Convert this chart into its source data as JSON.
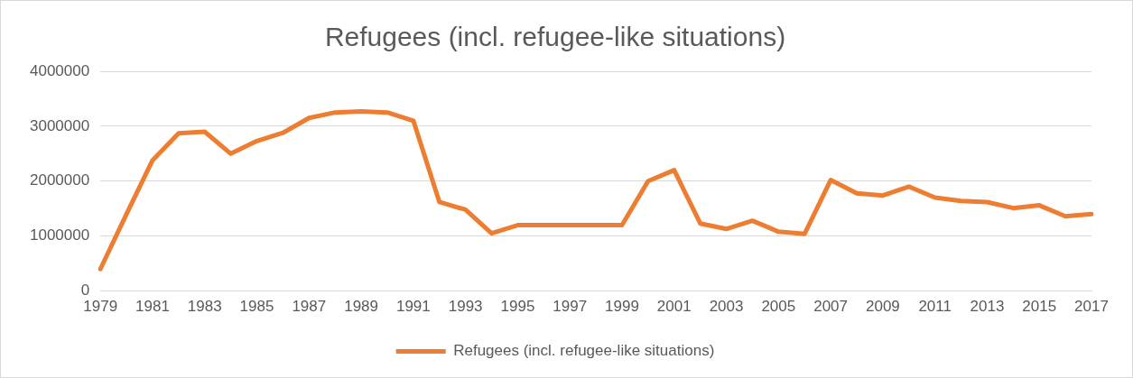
{
  "chart_data": {
    "type": "line",
    "title": "Refugees (incl. refugee-like situations)",
    "categories": [
      "1979",
      null,
      "1981",
      null,
      "1983",
      null,
      "1985",
      null,
      "1987",
      null,
      "1989",
      null,
      "1991",
      null,
      "1993",
      null,
      "1995",
      null,
      "1997",
      null,
      "1999",
      null,
      "2001",
      null,
      "2003",
      null,
      "2005",
      null,
      "2007",
      null,
      "2009",
      null,
      "2011",
      null,
      "2013",
      null,
      "2015",
      null,
      "2017"
    ],
    "series": [
      {
        "name": "Refugees (incl. refugee-like situations)",
        "color": "#ed7d31",
        "values": [
          400000,
          1400000,
          2380000,
          2870000,
          2900000,
          2500000,
          2730000,
          2880000,
          3150000,
          3250000,
          3270000,
          3250000,
          3100000,
          1620000,
          1480000,
          1050000,
          1200000,
          1200000,
          1200000,
          1200000,
          1200000,
          2000000,
          2200000,
          1230000,
          1130000,
          1280000,
          1080000,
          1040000,
          2020000,
          1780000,
          1740000,
          1900000,
          1700000,
          1640000,
          1620000,
          1510000,
          1560000,
          1360000,
          1400000
        ]
      }
    ],
    "ylim": [
      0,
      4000000
    ],
    "yticks": [
      0,
      1000000,
      2000000,
      3000000,
      4000000
    ],
    "grid": "y",
    "legend": "bottom",
    "marker": "none",
    "line_style": "solid"
  }
}
